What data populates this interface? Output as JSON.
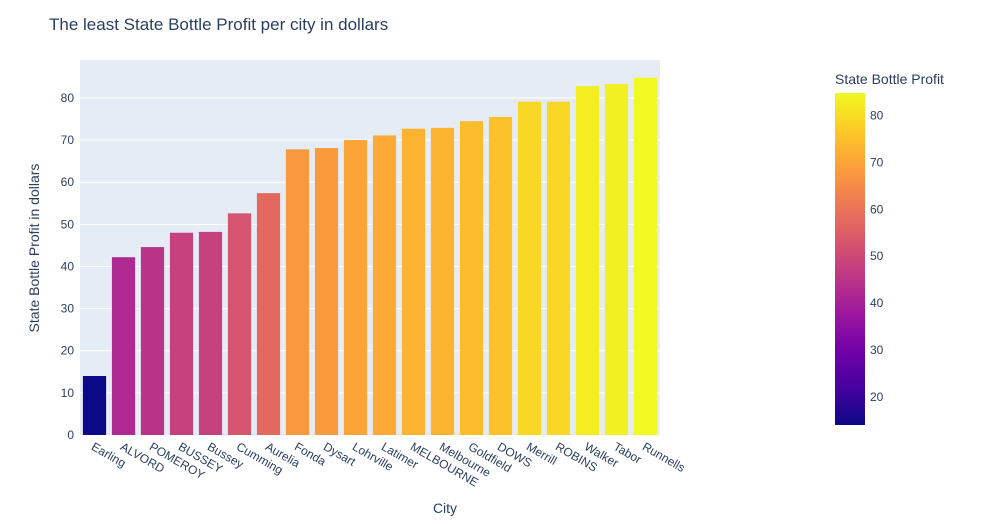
{
  "chart_data": {
    "type": "bar",
    "title": "The least State Bottle Profit per city in dollars",
    "xlabel": "City",
    "ylabel": "State Bottle Profit in dollars",
    "categories": [
      "Earling",
      "ALVORD",
      "POMEROY",
      "BUSSEY",
      "Bussey",
      "Cumming",
      "Aurelia",
      "Fonda",
      "Dysart",
      "Lohrville",
      "Latimer",
      "MELBOURNE",
      "Melbourne",
      "Goldfield",
      "DOWS",
      "Merrill",
      "ROBINS",
      "Walker",
      "Tabor",
      "Runnells"
    ],
    "values": [
      14.0,
      42.2,
      44.6,
      48.0,
      48.2,
      52.6,
      57.4,
      67.8,
      68.1,
      70.0,
      71.1,
      72.7,
      72.9,
      74.5,
      75.5,
      79.1,
      79.1,
      82.8,
      83.3,
      84.8
    ],
    "ylim": [
      0,
      89
    ],
    "yticks": [
      0,
      10,
      20,
      30,
      40,
      50,
      60,
      70,
      80
    ],
    "grid": true,
    "colorbar": {
      "title": "State Bottle Profit",
      "range": [
        14.0,
        84.8
      ],
      "ticks": [
        20,
        30,
        40,
        50,
        60,
        70,
        80
      ],
      "scale": [
        "#0d0887",
        "#46039f",
        "#7201a8",
        "#9c179e",
        "#bd3786",
        "#d8576b",
        "#ed7953",
        "#fb9f3a",
        "#fdca26",
        "#f0f921"
      ]
    },
    "colors": {
      "plot_bg": "#e5ecf6",
      "grid": "#ffffff",
      "text": "#2a3f5f"
    }
  }
}
